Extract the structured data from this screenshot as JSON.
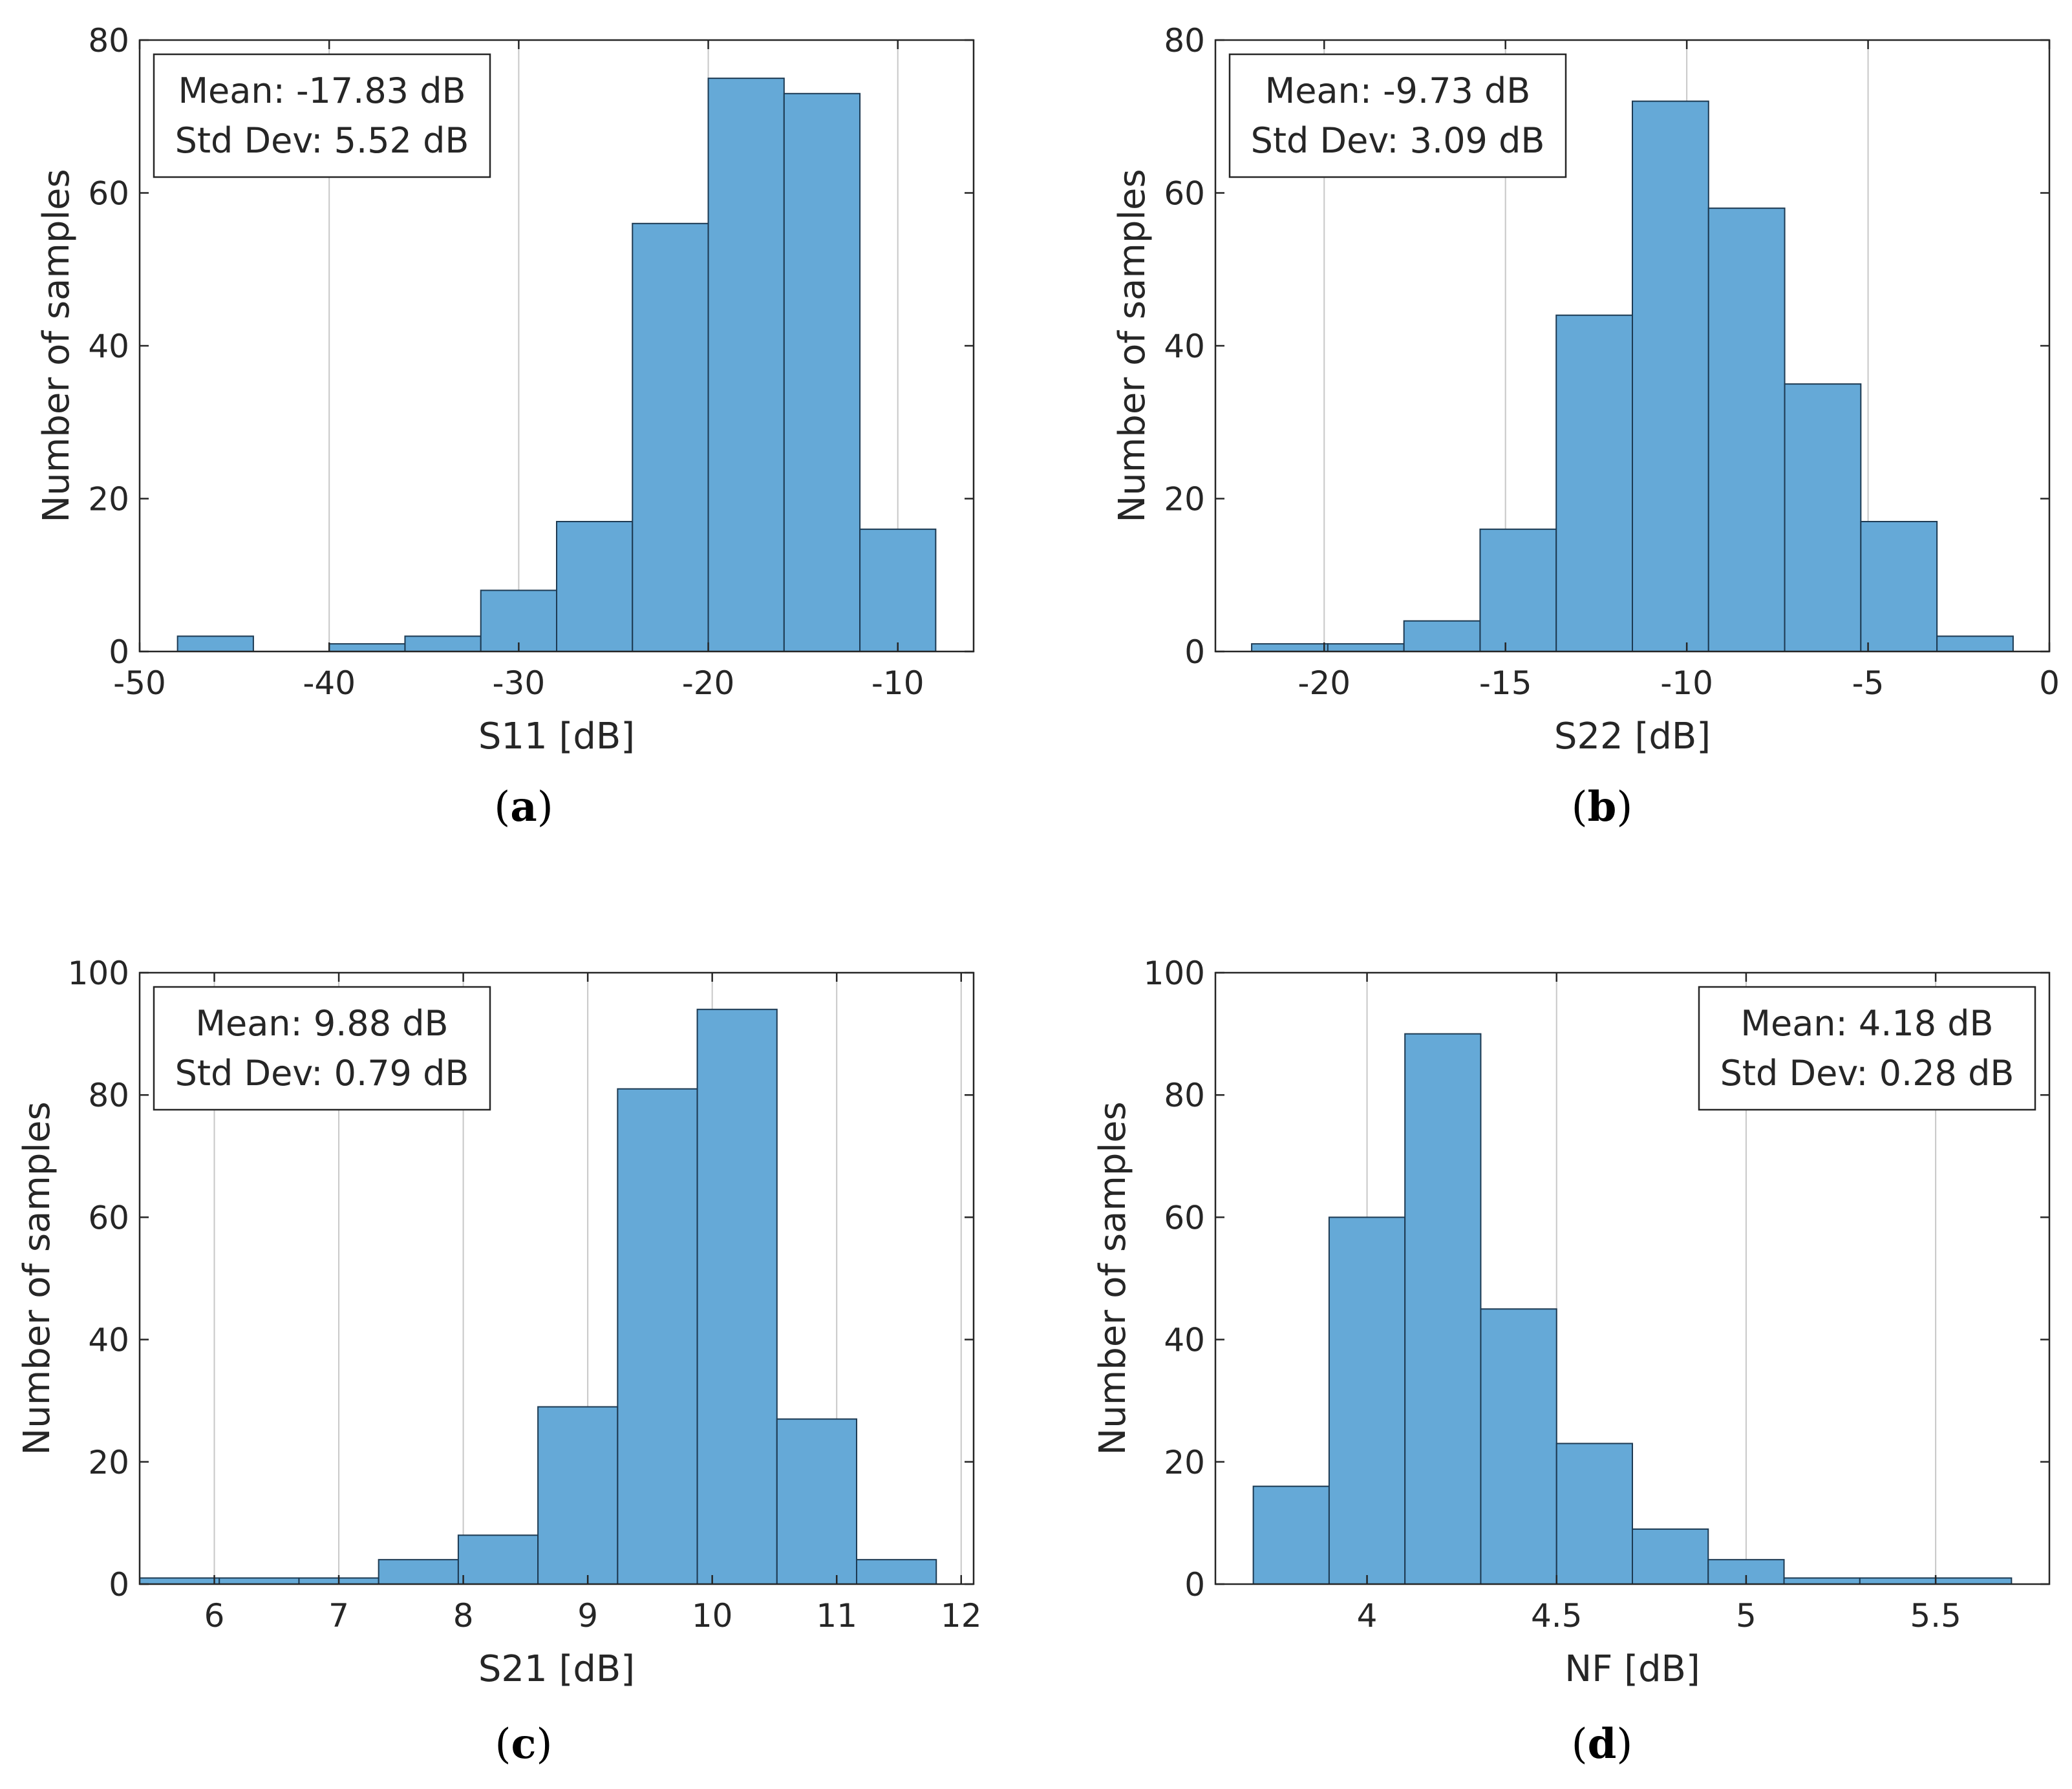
{
  "colors": {
    "bar_fill": "#65a9d7",
    "bar_edge": "#1d3a52",
    "grid": "#c8c8c8",
    "axis": "#262626"
  },
  "chart_data": [
    {
      "id": "a",
      "type": "bar",
      "caption_letter": "a",
      "xlabel": "S11 [dB]",
      "ylabel": "Number of samples",
      "xlim": [
        -50,
        -6
      ],
      "ylim": [
        0,
        80
      ],
      "xticks": [
        -50,
        -40,
        -30,
        -20,
        -10
      ],
      "xtick_labels": [
        "-50",
        "-40",
        "-30",
        "-20",
        "-10"
      ],
      "yticks": [
        0,
        20,
        40,
        60,
        80
      ],
      "ytick_labels": [
        "0",
        "20",
        "40",
        "60",
        "80"
      ],
      "bin_edges": [
        -48,
        -44,
        -40,
        -36,
        -32,
        -28,
        -24,
        -20,
        -16,
        -12,
        -8
      ],
      "counts": [
        2,
        0,
        1,
        2,
        8,
        17,
        56,
        75,
        73,
        16
      ],
      "stats_position": "top-left",
      "stats": {
        "mean": "Mean: -17.83 dB",
        "std": "Std Dev: 5.52 dB"
      }
    },
    {
      "id": "b",
      "type": "bar",
      "caption_letter": "b",
      "xlabel": "S22 [dB]",
      "ylabel": "Number of samples",
      "xlim": [
        -23,
        0
      ],
      "ylim": [
        0,
        80
      ],
      "xticks": [
        -20,
        -15,
        -10,
        -5,
        0
      ],
      "xtick_labels": [
        "-20",
        "-15",
        "-10",
        "-5",
        "0"
      ],
      "yticks": [
        0,
        20,
        40,
        60,
        80
      ],
      "ytick_labels": [
        "0",
        "20",
        "40",
        "60",
        "80"
      ],
      "bin_edges": [
        -22,
        -19.9,
        -17.8,
        -15.7,
        -13.6,
        -11.5,
        -9.4,
        -7.3,
        -5.2,
        -3.1,
        -1
      ],
      "counts": [
        1,
        1,
        4,
        16,
        44,
        72,
        58,
        35,
        17,
        2
      ],
      "stats_position": "top-left",
      "stats": {
        "mean": "Mean: -9.73 dB",
        "std": "Std Dev: 3.09 dB"
      }
    },
    {
      "id": "c",
      "type": "bar",
      "caption_letter": "c",
      "xlabel": "S21 [dB]",
      "ylabel": "Number of samples",
      "xlim": [
        5.4,
        12.1
      ],
      "ylim": [
        0,
        100
      ],
      "xticks": [
        6,
        7,
        8,
        9,
        10,
        11,
        12
      ],
      "xtick_labels": [
        "6",
        "7",
        "8",
        "9",
        "10",
        "11",
        "12"
      ],
      "yticks": [
        0,
        20,
        40,
        60,
        80,
        100
      ],
      "ytick_labels": [
        "0",
        "20",
        "40",
        "60",
        "80",
        "100"
      ],
      "bin_edges": [
        5.4,
        6.04,
        6.68,
        7.32,
        7.96,
        8.6,
        9.24,
        9.88,
        10.52,
        11.16,
        11.8
      ],
      "counts": [
        1,
        1,
        1,
        4,
        8,
        29,
        81,
        94,
        27,
        4
      ],
      "stats_position": "top-left",
      "stats": {
        "mean": "Mean: 9.88 dB",
        "std": "Std Dev: 0.79 dB"
      }
    },
    {
      "id": "d",
      "type": "bar",
      "caption_letter": "d",
      "xlabel": "NF [dB]",
      "ylabel": "Number of samples",
      "xlim": [
        3.6,
        5.8
      ],
      "ylim": [
        0,
        100
      ],
      "xticks": [
        4,
        4.5,
        5,
        5.5
      ],
      "xtick_labels": [
        "4",
        "4.5",
        "5",
        "5.5"
      ],
      "yticks": [
        0,
        20,
        40,
        60,
        80,
        100
      ],
      "ytick_labels": [
        "0",
        "20",
        "40",
        "60",
        "80",
        "100"
      ],
      "bin_edges": [
        3.7,
        3.9,
        4.1,
        4.3,
        4.5,
        4.7,
        4.9,
        5.1,
        5.3,
        5.5,
        5.7
      ],
      "counts": [
        16,
        60,
        90,
        45,
        23,
        9,
        4,
        1,
        1,
        1
      ],
      "stats_position": "top-right",
      "stats": {
        "mean": "Mean: 4.18 dB",
        "std": "Std Dev: 0.28 dB"
      }
    }
  ]
}
